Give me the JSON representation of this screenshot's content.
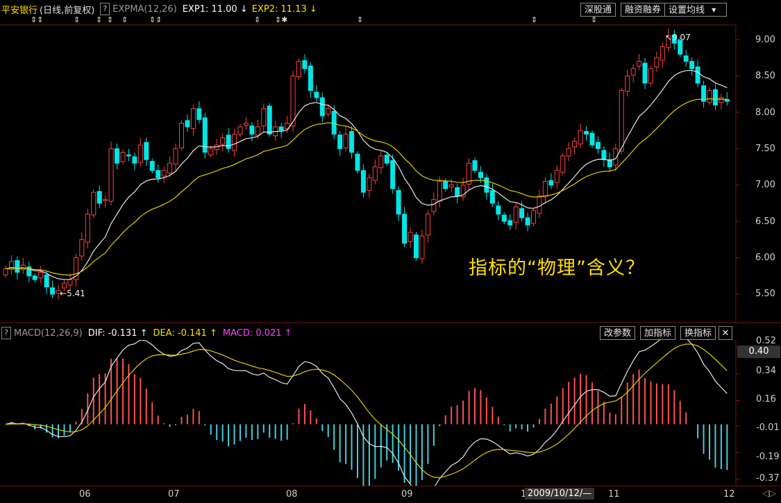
{
  "header": {
    "stock_name": "平安银行",
    "period_info": "(日线,前复权)",
    "help_mark": "?",
    "indicator_name": "EXPMA(12,26)",
    "exp1_label": "EXP1: 11.00",
    "exp1_arrow": "↓",
    "exp2_label": "EXP2: 11.13",
    "exp2_arrow": "↓",
    "buttons": [
      "深股通",
      "融资融券",
      "设置均线"
    ],
    "dropdown_icon": "▼"
  },
  "macd_header": {
    "help_mark": "?",
    "indicator_name": "MACD(12,26,9)",
    "dif_label": "DIF: -0.131",
    "dif_arrow": "↑",
    "dea_label": "DEA: -0.141",
    "dea_arrow": "↑",
    "macd_label": "MACD: 0.021",
    "macd_arrow": "↑",
    "buttons": [
      "改参数",
      "加指标",
      "换指标"
    ],
    "close_icon": "✕"
  },
  "annotation": "指标的“物理”含义？",
  "price_axis": [
    "9.00",
    "8.50",
    "8.00",
    "7.50",
    "7.00",
    "6.50",
    "6.00",
    "5.50"
  ],
  "macd_axis": [
    "0.52",
    "0.34",
    "0.16",
    "-0.01",
    "-0.19",
    "-0.37"
  ],
  "macd_current_value": "0.40",
  "date_axis": [
    "06",
    "07",
    "08",
    "09",
    "1",
    "11",
    "12"
  ],
  "date_cursor": "2009/10/12/—",
  "high_marker": "9.07",
  "low_marker": "5.41",
  "colors": {
    "up": "#ff4040",
    "down": "#00e6e6",
    "ema1": "#e8e8e8",
    "ema2": "#e0d000",
    "macd_pos": "#ff5050",
    "macd_neg": "#40d0e0"
  },
  "chart_data": {
    "type": "candlestick",
    "price_range": [
      5.2,
      9.3
    ],
    "macd_range": [
      -0.4,
      0.56
    ],
    "closes": [
      5.85,
      5.95,
      5.8,
      5.9,
      5.75,
      5.7,
      5.8,
      5.6,
      5.5,
      5.55,
      5.65,
      5.7,
      6.0,
      6.25,
      6.6,
      6.9,
      6.75,
      6.8,
      7.5,
      7.3,
      7.45,
      7.4,
      7.3,
      7.55,
      7.35,
      7.2,
      7.1,
      7.2,
      7.3,
      7.5,
      7.85,
      7.8,
      8.05,
      7.9,
      7.45,
      7.5,
      7.55,
      7.65,
      7.5,
      7.7,
      7.8,
      7.85,
      7.7,
      7.8,
      8.05,
      7.7,
      7.8,
      7.75,
      7.85,
      8.5,
      8.7,
      8.6,
      8.3,
      8.2,
      7.95,
      8.05,
      7.7,
      7.5,
      7.7,
      7.45,
      7.2,
      6.9,
      7.1,
      7.25,
      7.4,
      7.3,
      6.95,
      6.6,
      6.2,
      6.35,
      6.0,
      6.3,
      6.6,
      6.8,
      7.05,
      6.95,
      7.0,
      6.85,
      7.0,
      7.3,
      7.2,
      7.1,
      6.9,
      6.75,
      6.6,
      6.5,
      6.45,
      6.7,
      6.55,
      6.45,
      6.65,
      6.85,
      7.05,
      7.0,
      7.2,
      7.4,
      7.5,
      7.6,
      7.75,
      7.7,
      7.55,
      7.5,
      7.35,
      7.25,
      7.5,
      8.3,
      8.5,
      8.6,
      8.7,
      8.4,
      8.6,
      8.75,
      8.9,
      9.05,
      8.95,
      8.8,
      8.7,
      8.6,
      8.4,
      8.15,
      8.3,
      8.1,
      8.2,
      8.15
    ],
    "candle_count": 124
  }
}
